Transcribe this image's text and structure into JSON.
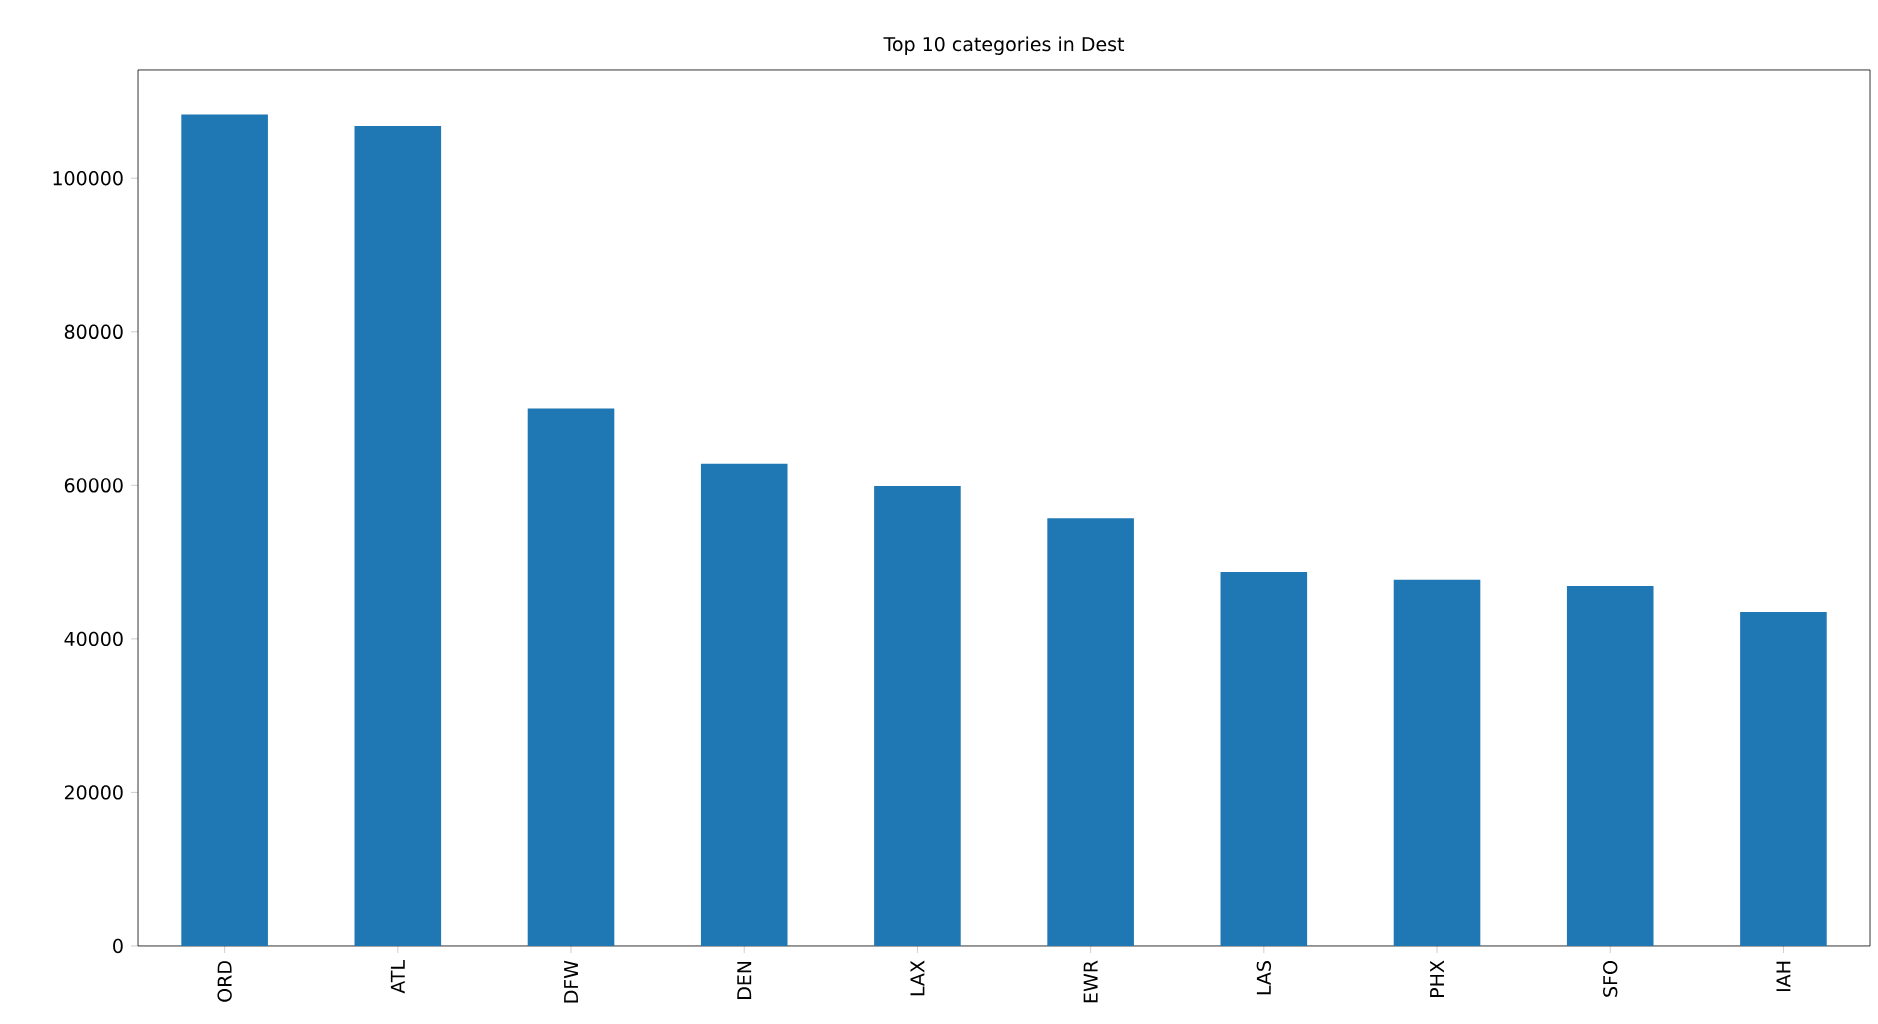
{
  "chart_data": {
    "type": "bar",
    "title": "Top 10 categories in Dest",
    "categories": [
      "ORD",
      "ATL",
      "DFW",
      "DEN",
      "LAX",
      "EWR",
      "LAS",
      "PHX",
      "SFO",
      "IAH"
    ],
    "values": [
      108300,
      106800,
      70000,
      62800,
      59900,
      55700,
      48700,
      47700,
      46900,
      43500
    ],
    "color": "#1f77b4",
    "ylim": [
      0,
      114100
    ],
    "yticks": [
      0,
      20000,
      40000,
      60000,
      80000,
      100000
    ],
    "grid": false
  }
}
